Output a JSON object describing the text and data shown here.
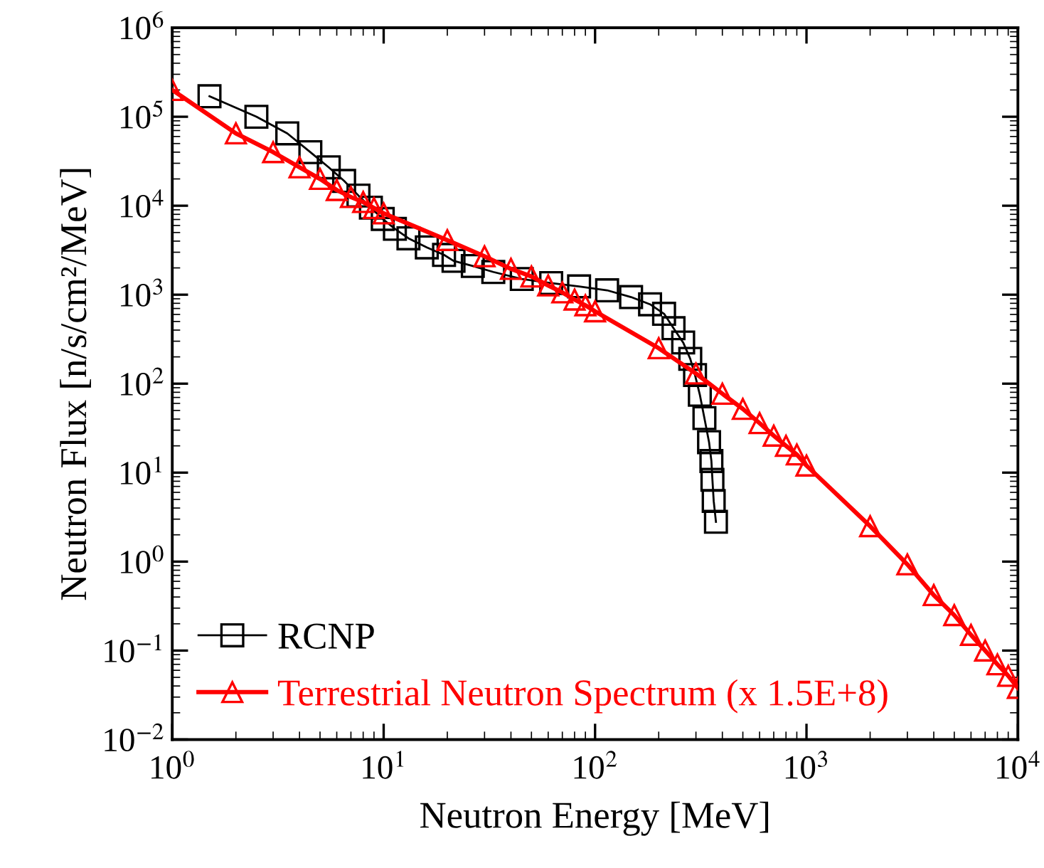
{
  "chart_data": {
    "type": "line",
    "xlabel": "Neutron Energy [MeV]",
    "ylabel": "Neutron Flux [n/s/cm²/MeV]",
    "log": "xy",
    "xlim": [
      1,
      10000
    ],
    "ylim": [
      0.01,
      1000000
    ],
    "xticks": [
      {
        "value": 1,
        "label": "10$^{0}$"
      },
      {
        "value": 10,
        "label": "10$^{1}$"
      },
      {
        "value": 100,
        "label": "10$^{2}$"
      },
      {
        "value": 1000,
        "label": "10$^{3}$"
      },
      {
        "value": 10000,
        "label": "10$^{4}$"
      }
    ],
    "yticks": [
      {
        "value": 0.01,
        "label": "10$^{−2}$"
      },
      {
        "value": 0.1,
        "label": "10$^{−1}$"
      },
      {
        "value": 1,
        "label": "10$^{0}$"
      },
      {
        "value": 10,
        "label": "10$^{1}$"
      },
      {
        "value": 100,
        "label": "10$^{2}$"
      },
      {
        "value": 1000,
        "label": "10$^{3}$"
      },
      {
        "value": 10000,
        "label": "10$^{4}$"
      },
      {
        "value": 100000,
        "label": "10$^{5}$"
      },
      {
        "value": 1000000,
        "label": "10$^{6}$"
      }
    ],
    "grid": false,
    "legend": "bottom left",
    "series": [
      {
        "name": "RCNP",
        "color": "#000000",
        "marker": "square",
        "line_style": "solid",
        "x": [
          1.5,
          2.5,
          3.5,
          4.5,
          5.5,
          6.5,
          7.6,
          8.7,
          9.9,
          11.3,
          13.1,
          16,
          19.3,
          21.4,
          26.4,
          33,
          45,
          62,
          84,
          114,
          148,
          182,
          212,
          235,
          261,
          282,
          297,
          313,
          329,
          346,
          355,
          359,
          364,
          373
        ],
        "values": [
          170000,
          100000,
          65000,
          40000,
          27000,
          19000,
          13000,
          9500,
          7100,
          5500,
          4300,
          3400,
          2800,
          2400,
          2100,
          1800,
          1500,
          1350,
          1240,
          1120,
          940,
          780,
          610,
          420,
          290,
          190,
          125,
          75,
          41,
          22,
          13.5,
          8.3,
          4.8,
          2.8
        ]
      },
      {
        "name": "Terrestrial Neutron Spectrum (x 1.5E+8)",
        "color": "#ff0000",
        "marker": "triangle",
        "line_style": "solid",
        "x": [
          1,
          2,
          3,
          4,
          5,
          6,
          7,
          8,
          9,
          10,
          20,
          30,
          40,
          50,
          60,
          70,
          80,
          90,
          100,
          200,
          300,
          400,
          500,
          600,
          700,
          800,
          900,
          1000,
          2000,
          3000,
          4000,
          5000,
          6000,
          7000,
          8000,
          9000,
          10000
        ],
        "values": [
          200000,
          65000,
          40000,
          27000,
          20000,
          15000,
          12500,
          11000,
          9400,
          8200,
          4100,
          2700,
          1950,
          1600,
          1270,
          1060,
          880,
          760,
          650,
          250,
          130,
          77,
          52,
          36,
          26,
          20,
          16,
          12,
          2.5,
          0.93,
          0.42,
          0.25,
          0.15,
          0.1,
          0.07,
          0.052,
          0.038
        ]
      }
    ]
  }
}
